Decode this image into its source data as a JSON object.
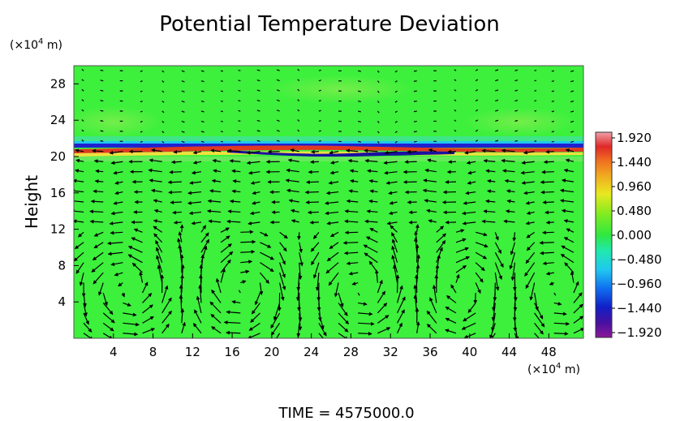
{
  "chart_data": {
    "type": "heatmap",
    "title": "Potential Temperature Deviation",
    "ylabel": "Height",
    "y_unit_prefix": "(×10",
    "y_unit_exp": "4",
    "y_unit_suffix": " m)",
    "x_unit_prefix": "(×10",
    "x_unit_exp": "4",
    "x_unit_suffix": " m)",
    "xlim": [
      0,
      51.5
    ],
    "ylim": [
      0,
      30
    ],
    "xticks": [
      "4",
      "8",
      "12",
      "16",
      "20",
      "24",
      "28",
      "32",
      "36",
      "40",
      "44",
      "48"
    ],
    "yticks": [
      "4",
      "8",
      "12",
      "16",
      "20",
      "24",
      "28"
    ],
    "colorbar": {
      "min": -1.92,
      "max": 1.92,
      "tick_labels": [
        "1.920",
        "1.440",
        "0.960",
        "0.480",
        "0.000",
        "−0.480",
        "−0.960",
        "−1.440",
        "−1.920"
      ]
    },
    "features": {
      "background": "near-zero deviation (green) throughout",
      "inversion_band_height": 20.8,
      "band_note": "strong alternating positive/negative deviation layer near 20–22",
      "vectors": "wind arrows on regular grid; weak above band, organized circulation cells below"
    },
    "time_label": "TIME  =  4575000.0"
  },
  "colors": {
    "background_field": "#3cf03c",
    "high": "#e22020",
    "low": "#3a0a9a"
  }
}
